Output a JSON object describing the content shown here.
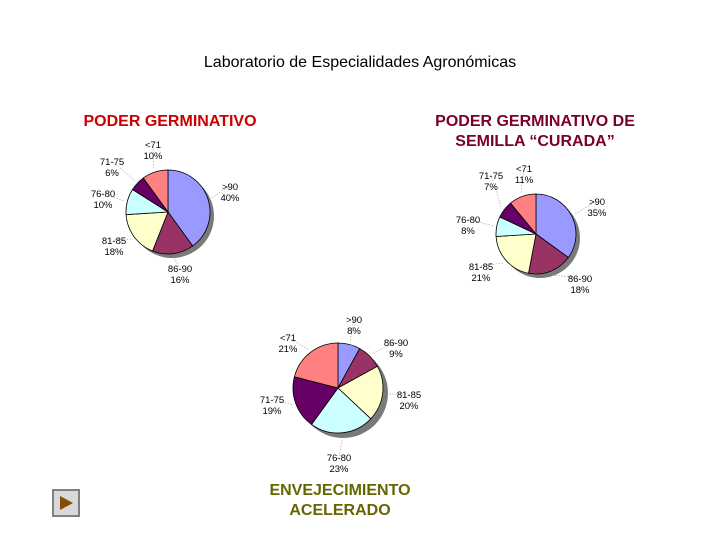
{
  "page": {
    "title": "Laboratorio de Especialidades Agronómicas"
  },
  "chart_data": [
    {
      "type": "pie",
      "title": "PODER GERMINATIVO",
      "slices": [
        {
          "label": ">90",
          "value": 40,
          "pct": "40%",
          "color": "#9999ff"
        },
        {
          "label": "86-90",
          "value": 16,
          "pct": "16%",
          "color": "#993366"
        },
        {
          "label": "81-85",
          "value": 18,
          "pct": "18%",
          "color": "#ffffcc"
        },
        {
          "label": "76-80",
          "value": 10,
          "pct": "10%",
          "color": "#ccffff"
        },
        {
          "label": "71-75",
          "value": 6,
          "pct": "6%",
          "color": "#660066"
        },
        {
          "label": "<71",
          "value": 10,
          "pct": "10%",
          "color": "#ff8080"
        }
      ]
    },
    {
      "type": "pie",
      "title": "PODER GERMINATIVO DE SEMILLA “CURADA”",
      "slices": [
        {
          "label": ">90",
          "value": 35,
          "pct": "35%",
          "color": "#9999ff"
        },
        {
          "label": "86-90",
          "value": 18,
          "pct": "18%",
          "color": "#993366"
        },
        {
          "label": "81-85",
          "value": 21,
          "pct": "21%",
          "color": "#ffffcc"
        },
        {
          "label": "76-80",
          "value": 8,
          "pct": "8%",
          "color": "#ccffff"
        },
        {
          "label": "71-75",
          "value": 7,
          "pct": "7%",
          "color": "#660066"
        },
        {
          "label": "<71",
          "value": 11,
          "pct": "11%",
          "color": "#ff8080"
        }
      ]
    },
    {
      "type": "pie",
      "title": "ENVEJECIMIENTO ACELERADO",
      "slices": [
        {
          "label": ">90",
          "value": 8,
          "pct": "8%",
          "color": "#9999ff"
        },
        {
          "label": "86-90",
          "value": 9,
          "pct": "9%",
          "color": "#993366"
        },
        {
          "label": "81-85",
          "value": 20,
          "pct": "20%",
          "color": "#ffffcc"
        },
        {
          "label": "76-80",
          "value": 23,
          "pct": "23%",
          "color": "#ccffff"
        },
        {
          "label": "71-75",
          "value": 19,
          "pct": "19%",
          "color": "#660066"
        },
        {
          "label": "<71",
          "value": 21,
          "pct": "21%",
          "color": "#ff8080"
        }
      ]
    }
  ],
  "nav": {
    "icon": "play-arrow-icon"
  }
}
